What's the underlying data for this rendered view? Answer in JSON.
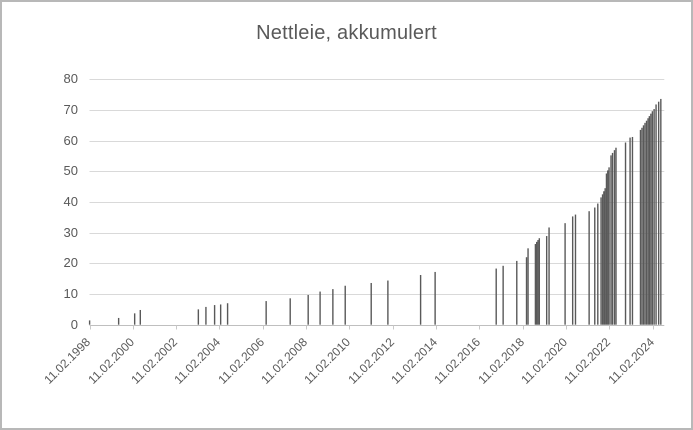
{
  "chart_data": {
    "type": "bar",
    "title": "Nettleie, akkumulert",
    "xlabel": "",
    "ylabel": "",
    "ylim": [
      0,
      80
    ],
    "yticks": [
      0,
      10,
      20,
      30,
      40,
      50,
      60,
      70,
      80
    ],
    "grid": true,
    "legend": "none",
    "x_axis": {
      "kind": "date-decimal-years",
      "min": 1998.115,
      "max": 2024.65,
      "tick_positions": [
        1998.115,
        2000.115,
        2002.115,
        2004.115,
        2006.115,
        2008.115,
        2010.115,
        2012.115,
        2014.115,
        2016.115,
        2018.115,
        2020.115,
        2022.115,
        2024.115
      ],
      "tick_labels": [
        "11.02.1998",
        "11.02.2000",
        "11.02.2002",
        "11.02.2004",
        "11.02.2006",
        "11.02.2008",
        "11.02.2010",
        "11.02.2012",
        "11.02.2014",
        "11.02.2016",
        "11.02.2018",
        "11.02.2020",
        "11.02.2022",
        "11.02.2024"
      ]
    },
    "series": [
      {
        "name": "Nettleie, akkumulert",
        "points": [
          [
            1998.12,
            1.4
          ],
          [
            1999.46,
            2.2
          ],
          [
            2000.2,
            3.7
          ],
          [
            2000.46,
            4.8
          ],
          [
            2003.14,
            5.0
          ],
          [
            2003.49,
            5.8
          ],
          [
            2003.89,
            6.4
          ],
          [
            2004.17,
            6.6
          ],
          [
            2004.49,
            7.0
          ],
          [
            2006.27,
            7.7
          ],
          [
            2007.38,
            8.6
          ],
          [
            2008.21,
            9.7
          ],
          [
            2008.76,
            10.8
          ],
          [
            2009.35,
            11.6
          ],
          [
            2009.92,
            12.7
          ],
          [
            2011.12,
            13.6
          ],
          [
            2011.89,
            14.4
          ],
          [
            2013.4,
            16.2
          ],
          [
            2014.07,
            17.2
          ],
          [
            2016.89,
            18.3
          ],
          [
            2017.21,
            19.2
          ],
          [
            2017.84,
            20.8
          ],
          [
            2018.29,
            22.0
          ],
          [
            2018.36,
            24.9
          ],
          [
            2018.7,
            26.3
          ],
          [
            2018.76,
            27.0
          ],
          [
            2018.82,
            27.6
          ],
          [
            2018.88,
            28.2
          ],
          [
            2019.22,
            28.9
          ],
          [
            2019.33,
            31.7
          ],
          [
            2020.07,
            33.1
          ],
          [
            2020.42,
            35.3
          ],
          [
            2020.55,
            35.9
          ],
          [
            2021.18,
            37.0
          ],
          [
            2021.44,
            38.2
          ],
          [
            2021.58,
            39.5
          ],
          [
            2021.73,
            41.5
          ],
          [
            2021.8,
            42.5
          ],
          [
            2021.86,
            43.5
          ],
          [
            2021.92,
            44.5
          ],
          [
            2021.98,
            49.3
          ],
          [
            2022.04,
            50.3
          ],
          [
            2022.1,
            51.3
          ],
          [
            2022.19,
            55.2
          ],
          [
            2022.26,
            56.0
          ],
          [
            2022.35,
            56.9
          ],
          [
            2022.42,
            57.7
          ],
          [
            2022.86,
            59.4
          ],
          [
            2023.07,
            61.0
          ],
          [
            2023.18,
            61.2
          ],
          [
            2023.55,
            63.5
          ],
          [
            2023.62,
            64.2
          ],
          [
            2023.69,
            65.0
          ],
          [
            2023.76,
            65.8
          ],
          [
            2023.83,
            66.5
          ],
          [
            2023.9,
            67.3
          ],
          [
            2023.96,
            68.0
          ],
          [
            2024.03,
            68.8
          ],
          [
            2024.1,
            69.6
          ],
          [
            2024.18,
            70.3
          ],
          [
            2024.27,
            71.8
          ],
          [
            2024.39,
            72.7
          ],
          [
            2024.49,
            73.6
          ]
        ]
      }
    ],
    "colors": {
      "bar": "#595959",
      "gridline": "#d9d9d9",
      "axis_line": "#bfbfbf",
      "tick_mark": "#c9c9c9",
      "text": "#595959",
      "background": "#ffffff",
      "border": "#b8b8b8"
    }
  }
}
